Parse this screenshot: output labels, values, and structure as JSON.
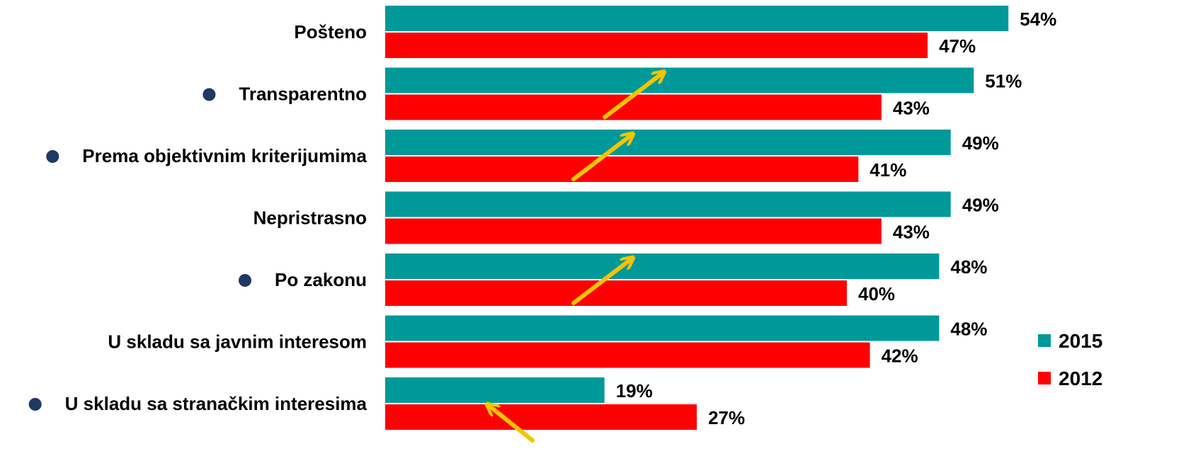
{
  "chart_data": {
    "type": "bar",
    "orientation": "horizontal",
    "categories": [
      "Pošteno",
      "Transparentno",
      "Prema objektivnim kriterijumima",
      "Nepristrasno",
      "Po zakonu",
      "U skladu sa javnim interesom",
      "U skladu sa stranačkim interesima"
    ],
    "series": [
      {
        "name": "2015",
        "color": "#009999",
        "values": [
          54,
          51,
          49,
          49,
          48,
          48,
          19
        ],
        "labels": [
          "54%",
          "51%",
          "49%",
          "49%",
          "48%",
          "48%",
          "19%"
        ]
      },
      {
        "name": "2012",
        "color": "#ff0000",
        "values": [
          47,
          43,
          41,
          43,
          40,
          42,
          27
        ],
        "labels": [
          "47%",
          "43%",
          "41%",
          "43%",
          "40%",
          "42%",
          "27%"
        ]
      }
    ],
    "unit": "%",
    "bullets": [
      false,
      true,
      true,
      false,
      true,
      false,
      true
    ],
    "bullet_color": "#1f3864",
    "arrows": [
      {
        "category": "Transparentno",
        "direction": "up-right"
      },
      {
        "category": "Prema objektivnim kriterijumima",
        "direction": "up-right"
      },
      {
        "category": "Po zakonu",
        "direction": "up-right"
      },
      {
        "category": "U skladu sa stranačkim interesima",
        "direction": "up-left"
      }
    ],
    "arrow_color": "#f5c400",
    "legend_position": "right",
    "grid": false
  }
}
